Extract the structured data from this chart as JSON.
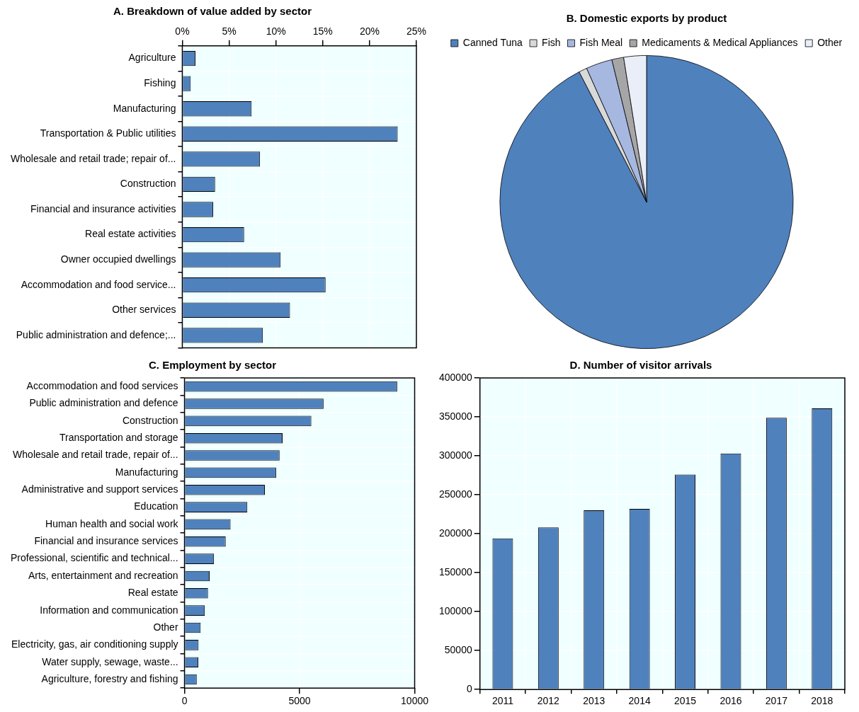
{
  "chart_data": [
    {
      "type": "bar",
      "title": "A. Breakdown of value added by sector",
      "orientation": "horizontal",
      "categories": [
        "Agriculture",
        "Fishing",
        "Manufacturing",
        "Transportation & Public utilities",
        "Wholesale and retail trade; repair of...",
        "Construction",
        "Financial and insurance activities",
        "Real estate activities",
        "Owner occupied dwellings",
        "Accommodation and food service...",
        "Other services",
        "Public administration and defence;..."
      ],
      "values": [
        1.4,
        0.9,
        7.4,
        23,
        8.3,
        3.5,
        3.3,
        6.6,
        10.5,
        15.3,
        11.5,
        8.6
      ],
      "color": "#4f81bd",
      "xlim": [
        0,
        25
      ],
      "xticks": [
        {
          "value": 0,
          "label": "0%"
        },
        {
          "value": 5,
          "label": "5%"
        },
        {
          "value": 10,
          "label": "10%"
        },
        {
          "value": 15,
          "label": "15%"
        },
        {
          "value": 20,
          "label": "20%"
        },
        {
          "value": 25,
          "label": "25%"
        }
      ],
      "grid": true
    },
    {
      "type": "pie",
      "title": "B. Domestic exports by product",
      "categories": [
        "Canned Tuna",
        "Fish",
        "Fish Meal",
        "Medicaments & Medical Appliances",
        "Other"
      ],
      "values": [
        92.4,
        0.9,
        2.9,
        1.3,
        2.5
      ],
      "colors": [
        "#4f81bd",
        "#d9d9d9",
        "#a6b8e0",
        "#a6a6a6",
        "#e9eef8"
      ],
      "legend": "top"
    },
    {
      "type": "bar",
      "title": "C. Employment by sector",
      "orientation": "horizontal",
      "categories": [
        "Accommodation and food services",
        "Public administration and defence",
        "Construction",
        "Transportation and storage",
        "Wholesale and retail trade, repair of...",
        "Manufacturing",
        "Administrative and support services",
        "Education",
        "Human health and social work",
        "Financial and insurance services",
        "Professional, scientific and technical...",
        "Arts, entertainment and recreation",
        "Real estate",
        "Information and communication",
        "Other",
        "Electricity, gas, air conditioning supply",
        "Water supply, sewage, waste...",
        "Agriculture, forestry and fishing"
      ],
      "values": [
        9240,
        6040,
        5510,
        4260,
        4130,
        3980,
        3490,
        2730,
        2000,
        1790,
        1280,
        1090,
        1020,
        880,
        700,
        610,
        600,
        530
      ],
      "color": "#4f81bd",
      "xlim": [
        0,
        10000
      ],
      "xticks": [
        0,
        5000,
        10000
      ],
      "grid": true
    },
    {
      "type": "bar",
      "title": "D. Number of visitor arrivals",
      "categories": [
        "2011",
        "2012",
        "2013",
        "2014",
        "2015",
        "2016",
        "2017",
        "2018"
      ],
      "values": [
        194000,
        208000,
        230000,
        232000,
        276000,
        303000,
        349000,
        361000
      ],
      "color": "#4f81bd",
      "ylim": [
        0,
        400000
      ],
      "yticks": [
        0,
        50000,
        100000,
        150000,
        200000,
        250000,
        300000,
        350000,
        400000
      ],
      "grid": true
    }
  ]
}
